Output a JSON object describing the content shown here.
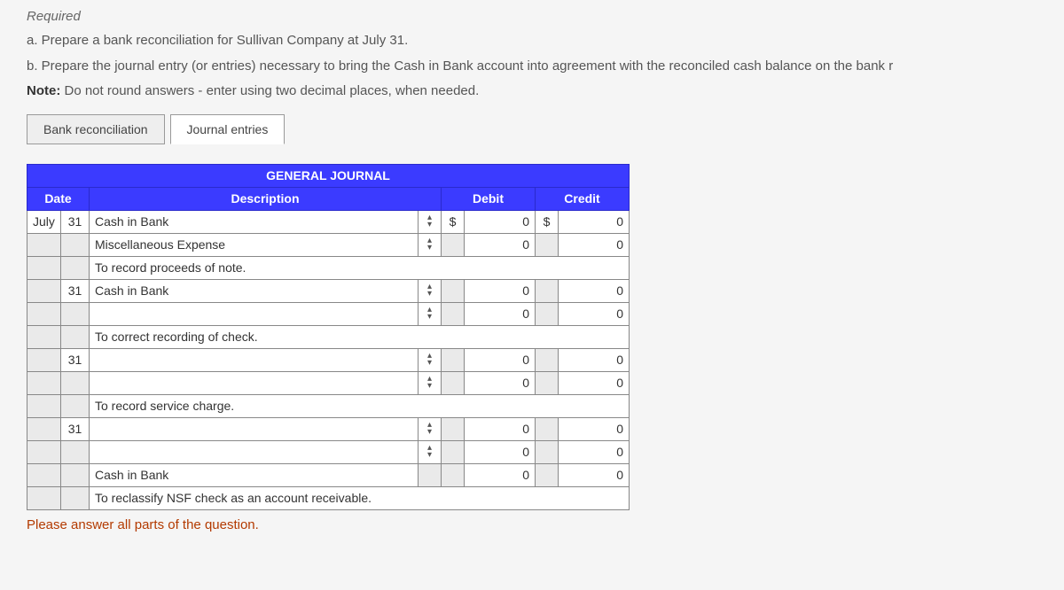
{
  "heading": "Required",
  "instructions": {
    "a": "a. Prepare a bank reconciliation for Sullivan Company at July 31.",
    "b": "b. Prepare the journal entry (or entries) necessary to bring the Cash in Bank account into agreement with the reconciled cash balance on the bank r",
    "note_label": "Note:",
    "note_text": "Do not round answers - enter using two decimal places, when needed."
  },
  "tabs": {
    "bank_rec": "Bank reconciliation",
    "journal": "Journal entries"
  },
  "journal": {
    "title": "GENERAL JOURNAL",
    "headers": {
      "date": "Date",
      "description": "Description",
      "debit": "Debit",
      "credit": "Credit"
    },
    "currency": "$",
    "rows": [
      {
        "month": "July",
        "day": "31",
        "desc": "Cash in Bank",
        "dd": true,
        "debit_cur": true,
        "debit": "0",
        "credit_cur": true,
        "credit": "0"
      },
      {
        "month": "",
        "day": "",
        "desc": "Miscellaneous Expense",
        "dd": true,
        "debit_cur": false,
        "debit": "0",
        "credit_cur": false,
        "credit": "0",
        "indent": true
      },
      {
        "month": "",
        "day": "",
        "desc": "To record proceeds of note.",
        "dd": false,
        "desc_only": true
      },
      {
        "month": "",
        "day": "31",
        "desc": "Cash in Bank",
        "dd": true,
        "debit_cur": false,
        "debit": "0",
        "credit_cur": false,
        "credit": "0"
      },
      {
        "month": "",
        "day": "",
        "desc": "",
        "dd": true,
        "debit_cur": false,
        "debit": "0",
        "credit_cur": false,
        "credit": "0"
      },
      {
        "month": "",
        "day": "",
        "desc": "To correct recording of check.",
        "dd": false,
        "desc_only": true
      },
      {
        "month": "",
        "day": "31",
        "desc": "",
        "dd": true,
        "debit_cur": false,
        "debit": "0",
        "credit_cur": false,
        "credit": "0"
      },
      {
        "month": "",
        "day": "",
        "desc": "",
        "dd": true,
        "debit_cur": false,
        "debit": "0",
        "credit_cur": false,
        "credit": "0"
      },
      {
        "month": "",
        "day": "",
        "desc": "To record service charge.",
        "dd": false,
        "desc_only": true
      },
      {
        "month": "",
        "day": "31",
        "desc": "",
        "dd": true,
        "debit_cur": false,
        "debit": "0",
        "credit_cur": false,
        "credit": "0"
      },
      {
        "month": "",
        "day": "",
        "desc": "",
        "dd": true,
        "debit_cur": false,
        "debit": "0",
        "credit_cur": false,
        "credit": "0"
      },
      {
        "month": "",
        "day": "",
        "desc": "Cash in Bank",
        "dd": false,
        "debit_cur": false,
        "debit": "0",
        "credit_cur": false,
        "credit": "0",
        "indent": true
      },
      {
        "month": "",
        "day": "",
        "desc": "To reclassify NSF check as an account receivable.",
        "dd": false,
        "desc_only": true
      }
    ]
  },
  "footer_note": "Please answer all parts of the question.",
  "colors": {
    "header_bg": "#3b3bff",
    "header_text": "#ffffff",
    "grey_cell": "#eaeaea",
    "border": "#888888",
    "note_color": "#b33a00"
  }
}
